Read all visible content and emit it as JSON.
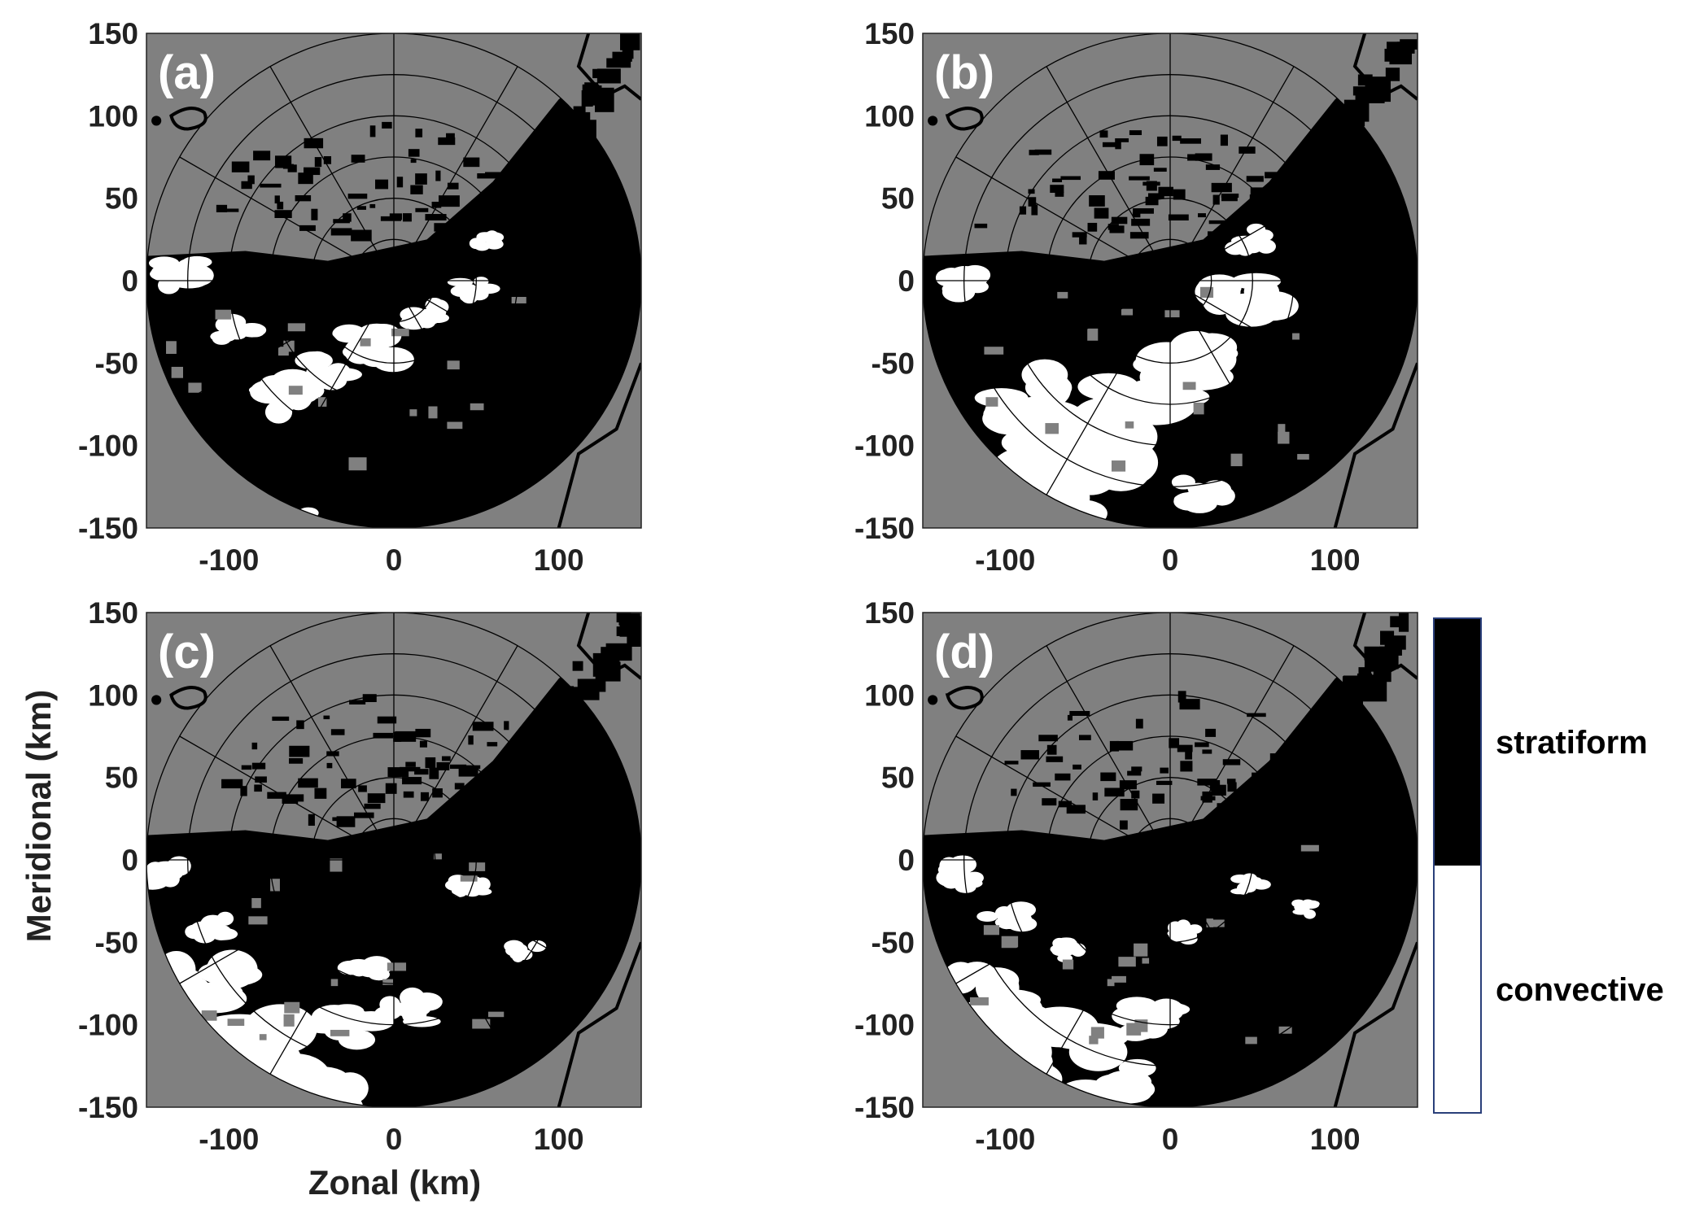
{
  "chart_data": {
    "type": "heatmap",
    "description_type": "polar radar classification map (4 panels)",
    "panels": [
      {
        "label": "(a)"
      },
      {
        "label": "(b)"
      },
      {
        "label": "(c)"
      },
      {
        "label": "(d)"
      }
    ],
    "xlabel": "Zonal (km)",
    "ylabel": "Meridional (km)",
    "xlim": [
      -150,
      150
    ],
    "ylim": [
      -150,
      150
    ],
    "xticks": [
      -100,
      0,
      100
    ],
    "yticks": [
      150,
      100,
      50,
      0,
      -50,
      -100,
      -150
    ],
    "radar_range_rings_km": [
      25,
      50,
      75,
      100,
      125,
      150
    ],
    "radial_spoke_interval_deg": 30,
    "legend": {
      "type": "colorbar",
      "entries": [
        {
          "label": "stratiform",
          "color": "#000000"
        },
        {
          "label": "convective",
          "color": "#ffffff"
        }
      ]
    },
    "colors": {
      "background": "#808080",
      "stratiform": "#000000",
      "convective": "#ffffff",
      "grid": "#000000"
    }
  }
}
